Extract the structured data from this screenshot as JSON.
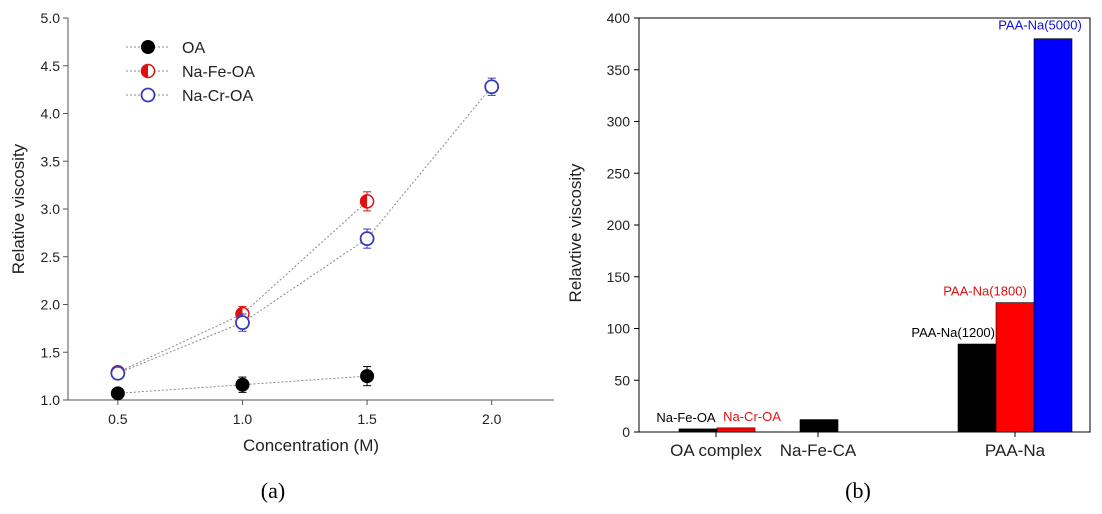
{
  "panels": {
    "a_caption": "(a)",
    "b_caption": "(b)"
  },
  "chart_data": [
    {
      "type": "scatter",
      "title": "",
      "xlabel": "Concentration (M)",
      "ylabel": "Relative viscosity",
      "xlim": [
        0.3,
        2.25
      ],
      "ylim": [
        1.0,
        5.0
      ],
      "xticks": [
        0.5,
        1.0,
        1.5,
        2.0
      ],
      "xtick_labels": [
        "0.5",
        "1.0",
        "1.5",
        "2.0"
      ],
      "yticks": [
        1.0,
        1.5,
        2.0,
        2.5,
        3.0,
        3.5,
        4.0,
        4.5,
        5.0
      ],
      "ytick_labels": [
        "1.0",
        "1.5",
        "2.0",
        "2.5",
        "3.0",
        "3.5",
        "4.0",
        "4.5",
        "5.0"
      ],
      "grid": false,
      "legend_position": "top-left",
      "connecting_lines": "dotted",
      "series": [
        {
          "name": "OA",
          "marker": "filled-circle",
          "color": "#000000",
          "x": [
            0.5,
            1.0,
            1.5
          ],
          "y": [
            1.07,
            1.16,
            1.25
          ],
          "err": [
            0.03,
            0.08,
            0.1
          ]
        },
        {
          "name": "Na-Fe-OA",
          "marker": "half-filled-circle",
          "color": "#e01010",
          "x": [
            0.5,
            1.0,
            1.5
          ],
          "y": [
            1.29,
            1.9,
            3.08
          ],
          "err": [
            0.05,
            0.08,
            0.1
          ]
        },
        {
          "name": "Na-Cr-OA",
          "marker": "open-circle",
          "color": "#3a3ab8",
          "x": [
            0.5,
            1.0,
            1.5,
            2.0
          ],
          "y": [
            1.28,
            1.81,
            2.69,
            4.28
          ],
          "err": [
            0.05,
            0.09,
            0.1,
            0.09
          ]
        }
      ]
    },
    {
      "type": "bar",
      "title": "",
      "xlabel": "",
      "ylabel": "Relavtive viscosity",
      "ylim": [
        0,
        400
      ],
      "yticks": [
        0,
        50,
        100,
        150,
        200,
        250,
        300,
        350,
        400
      ],
      "ytick_labels": [
        "0",
        "50",
        "100",
        "150",
        "200",
        "250",
        "300",
        "350",
        "400"
      ],
      "grid": false,
      "categories": [
        "OA complex",
        "Na-Fe-CA",
        "PAA-Na"
      ],
      "bars": [
        {
          "category": "OA complex",
          "label": "Na-Fe-OA",
          "value": 3,
          "color": "#000000",
          "label_color": "#000000"
        },
        {
          "category": "OA complex",
          "label": "Na-Cr-OA",
          "value": 4,
          "color": "#ff0000",
          "label_color": "#e01010"
        },
        {
          "category": "Na-Fe-CA",
          "label": "",
          "value": 12,
          "color": "#000000",
          "label_color": "#000000"
        },
        {
          "category": "PAA-Na",
          "label": "PAA-Na(1200)",
          "value": 85,
          "color": "#000000",
          "label_color": "#000000"
        },
        {
          "category": "PAA-Na",
          "label": "PAA-Na(1800)",
          "value": 125,
          "color": "#ff0000",
          "label_color": "#e01010"
        },
        {
          "category": "PAA-Na",
          "label": "PAA-Na(5000)",
          "value": 380,
          "color": "#0000ff",
          "label_color": "#1010e0"
        }
      ]
    }
  ]
}
